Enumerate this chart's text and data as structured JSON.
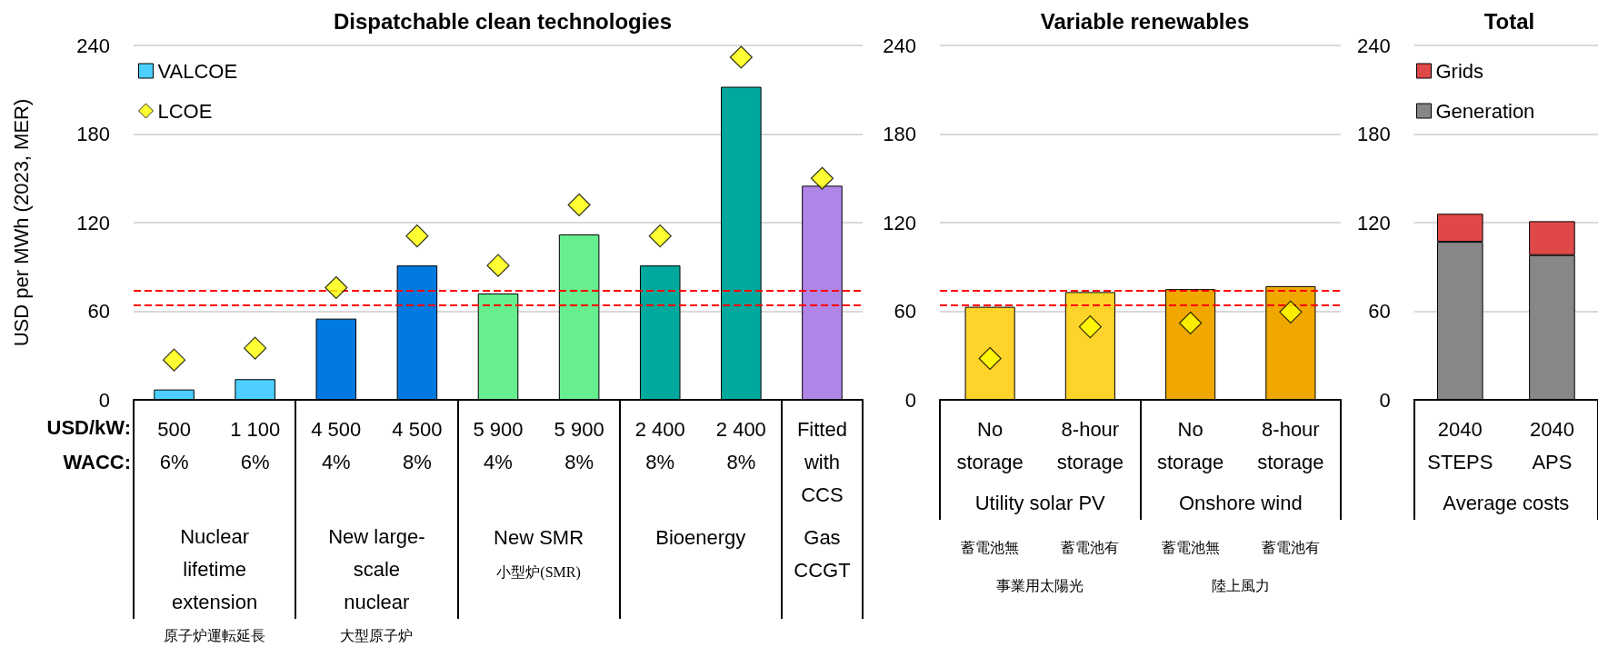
{
  "chart_data": [
    {
      "type": "bar",
      "title": "Dispatchable clean technologies",
      "ylabel": "USD per MWh (2023, MER)",
      "categories": [
        "500\n6%",
        "1 100\n6%",
        "4 500\n4%",
        "4 500\n8%",
        "5 900\n4%",
        "5 900\n8%",
        "2 400\n8%",
        "2 400\n8%",
        "Fitted\nwith\nCCS"
      ],
      "series": [
        {
          "name": "VALCOE",
          "colors": [
            "#4dcfff",
            "#4dcfff",
            "#0079e0",
            "#0079e0",
            "#66ee8f",
            "#66ee8f",
            "#00a99d",
            "#00a99d",
            "#b085e8"
          ],
          "values": [
            7,
            14,
            55,
            91,
            72,
            112,
            91,
            212,
            145
          ]
        },
        {
          "name": "LCOE",
          "type": "scatter",
          "color": "#ffff00",
          "values": [
            27,
            35,
            76,
            111,
            91,
            132,
            111,
            232,
            150
          ]
        }
      ],
      "ylim": [
        0,
        240
      ],
      "yticks": [
        0,
        60,
        120,
        180,
        240
      ],
      "grid": "y",
      "legend": "top left",
      "marker": "diamond",
      "ref_lines": [
        {
          "axis": "y",
          "value": 74,
          "color": "#ff0000",
          "line_style": "dashed"
        },
        {
          "axis": "y",
          "value": 64,
          "color": "#ff0000",
          "line_style": "dashed"
        }
      ],
      "annotations": [
        "USD/kW:",
        "WACC:",
        "Nuclear\nlifetime\nextension",
        "New large-\nscale\nnuclear",
        "New SMR",
        "小型炉(SMR)",
        "Bioenergy",
        "Gas\nCCGT",
        "原子炉運転延長",
        "大型原子炉"
      ]
    },
    {
      "type": "bar",
      "title": "Variable renewables",
      "categories": [
        "No\nstorage",
        "8-hour\nstorage",
        "No\nstorage",
        "8-hour\nstorage"
      ],
      "series": [
        {
          "colors": [
            "#fed32a",
            "#fed32a",
            "#f0a800",
            "#f0a800"
          ],
          "values": [
            63,
            73,
            75,
            77
          ]
        },
        {
          "type": "scatter",
          "color": "#ffff00",
          "values": [
            28,
            49.5,
            52,
            59.5
          ]
        }
      ],
      "ylim": [
        0,
        240
      ],
      "yticks": [
        0,
        60,
        120,
        180,
        240
      ],
      "grid": "y",
      "marker": "diamond",
      "ref_lines": [
        {
          "axis": "y",
          "value": 74,
          "color": "#ff0000",
          "line_style": "dashed"
        },
        {
          "axis": "y",
          "value": 64,
          "color": "#ff0000",
          "line_style": "dashed"
        }
      ],
      "annotations": [
        "Utility solar PV",
        "Onshore wind",
        "蓄電池無",
        "蓄電池有",
        "蓄電池無",
        "蓄電池有",
        "事業用太陽光",
        "陸上風力"
      ]
    },
    {
      "type": "bar",
      "title": "Total",
      "stacked": true,
      "categories": [
        "2040\nSTEPS",
        "2040\nAPS"
      ],
      "series": [
        {
          "name": "Generation",
          "color": "#878787",
          "values": [
            107,
            98
          ]
        },
        {
          "name": "Grids",
          "color": "#e04848",
          "values": [
            19,
            23
          ]
        }
      ],
      "ylim": [
        0,
        240
      ],
      "yticks": [
        0,
        60,
        120,
        180,
        240
      ],
      "grid": "y",
      "legend": "top left",
      "annotations": [
        "Average costs"
      ]
    }
  ]
}
